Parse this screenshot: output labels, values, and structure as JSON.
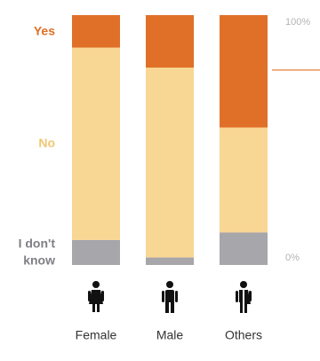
{
  "chart_data": {
    "type": "bar",
    "stacked": true,
    "normalized": true,
    "categories": [
      "Female",
      "Male",
      "Others"
    ],
    "series": [
      {
        "name": "I don't know",
        "values": [
          10,
          3,
          13
        ],
        "color": "#a6a6ab"
      },
      {
        "name": "No",
        "values": [
          77,
          76,
          42
        ],
        "color": "#f8d694"
      },
      {
        "name": "Yes",
        "values": [
          13,
          21,
          45
        ],
        "color": "#e07027"
      }
    ],
    "series_label_colors": {
      "Yes": "#e07027",
      "No": "#f0c872",
      "I don't know": "#7f7f85"
    },
    "ylim": [
      0,
      100
    ],
    "yticks": [
      {
        "value": 100,
        "label": "100%"
      },
      {
        "value": 0,
        "label": "0%"
      }
    ],
    "marker": {
      "value": 78,
      "color": "#e07027"
    },
    "category_icons": [
      "female-figure-icon",
      "male-figure-icon",
      "others-figure-icon"
    ],
    "grid": false,
    "legend": "left"
  }
}
